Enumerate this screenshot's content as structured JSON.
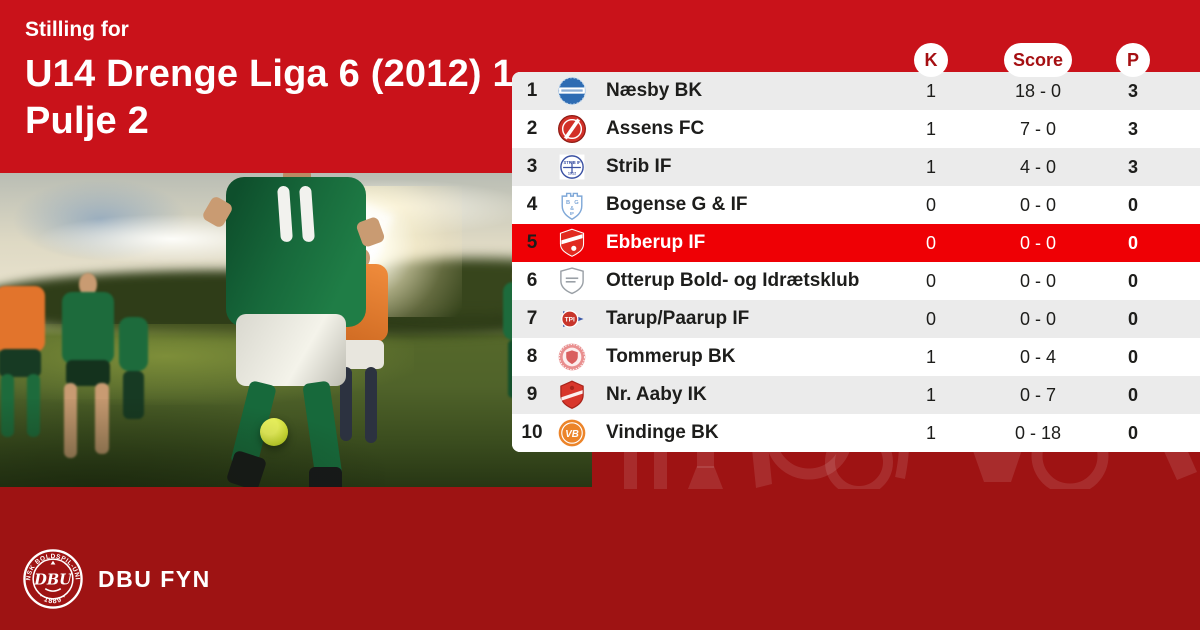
{
  "theme": {
    "bg_top": "#c9121a",
    "bg_bottom": "#9e1313",
    "row_alt": "#ebebeb",
    "highlight_row": "#ef0005",
    "pill_text": "#a50f12"
  },
  "header": {
    "eyebrow": "Stilling for",
    "title_line1": "U14 Drenge Liga 6 (2012) 1..",
    "title_line2": "Pulje 2"
  },
  "table": {
    "columns": [
      {
        "key": "k",
        "label": "K"
      },
      {
        "key": "score",
        "label": "Score"
      },
      {
        "key": "p",
        "label": "P"
      }
    ],
    "rows": [
      {
        "pos": "1",
        "club": "Næsby BK",
        "k": "1",
        "score": "18 - 0",
        "p": "3",
        "highlight": false,
        "logo": {
          "kind": "naesby",
          "primary": "#2e6cb3",
          "secondary": "#ffffff"
        }
      },
      {
        "pos": "2",
        "club": "Assens FC",
        "k": "1",
        "score": "7 - 0",
        "p": "3",
        "highlight": false,
        "logo": {
          "kind": "assens",
          "primary": "#d23028",
          "secondary": "#ffffff"
        }
      },
      {
        "pos": "3",
        "club": "Strib IF",
        "k": "1",
        "score": "4 - 0",
        "p": "3",
        "highlight": false,
        "logo": {
          "kind": "strib",
          "primary": "#3b51a3",
          "secondary": "#ffffff"
        }
      },
      {
        "pos": "4",
        "club": "Bogense G & IF",
        "k": "0",
        "score": "0 - 0",
        "p": "0",
        "highlight": false,
        "logo": {
          "kind": "bogense",
          "primary": "#7fa8d8",
          "secondary": "#ffffff"
        }
      },
      {
        "pos": "5",
        "club": "Ebberup IF",
        "k": "0",
        "score": "0 - 0",
        "p": "0",
        "highlight": true,
        "logo": {
          "kind": "ebberup",
          "primary": "#e12a20",
          "secondary": "#ffffff"
        }
      },
      {
        "pos": "6",
        "club": "Otterup Bold- og Idrætsklub",
        "k": "0",
        "score": "0 - 0",
        "p": "0",
        "highlight": false,
        "logo": {
          "kind": "otterup",
          "primary": "#9aa0a6",
          "secondary": "#ffffff"
        }
      },
      {
        "pos": "7",
        "club": "Tarup/Paarup IF",
        "k": "0",
        "score": "0 - 0",
        "p": "0",
        "highlight": false,
        "logo": {
          "kind": "tpi",
          "primary": "#c8352b",
          "secondary": "#3a57a8"
        }
      },
      {
        "pos": "8",
        "club": "Tommerup BK",
        "k": "1",
        "score": "0 - 4",
        "p": "0",
        "highlight": false,
        "logo": {
          "kind": "tommerup",
          "primary": "#e98f8f",
          "secondary": "#ffffff"
        }
      },
      {
        "pos": "9",
        "club": "Nr. Aaby IK",
        "k": "1",
        "score": "0 - 7",
        "p": "0",
        "highlight": false,
        "logo": {
          "kind": "nraaby",
          "primary": "#d8362b",
          "secondary": "#ffffff"
        }
      },
      {
        "pos": "10",
        "club": "Vindinge BK",
        "k": "1",
        "score": "0 - 18",
        "p": "0",
        "highlight": false,
        "logo": {
          "kind": "vindinge",
          "primary": "#ec8429",
          "secondary": "#ffffff"
        }
      }
    ]
  },
  "footer": {
    "brand": "DBU FYN",
    "seal": {
      "ring_text_top": "DANSK BOLDSPIL-UNION",
      "ring_text_bottom": "· 1889 ·",
      "center": "DBU"
    }
  }
}
